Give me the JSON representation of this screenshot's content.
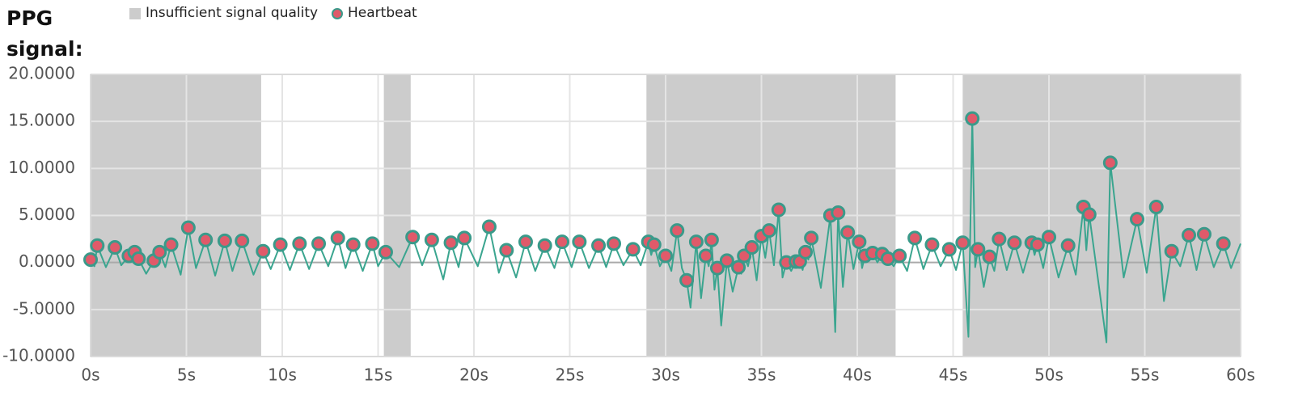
{
  "chart_data": {
    "type": "line",
    "title": "PPG signal:",
    "xlim": [
      0,
      60
    ],
    "ylim": [
      -10,
      20
    ],
    "xticks": [
      {
        "value": 0,
        "label": "0s"
      },
      {
        "value": 5,
        "label": "5s"
      },
      {
        "value": 10,
        "label": "10s"
      },
      {
        "value": 15,
        "label": "15s"
      },
      {
        "value": 20,
        "label": "20s"
      },
      {
        "value": 25,
        "label": "25s"
      },
      {
        "value": 30,
        "label": "30s"
      },
      {
        "value": 35,
        "label": "35s"
      },
      {
        "value": 40,
        "label": "40s"
      },
      {
        "value": 45,
        "label": "45s"
      },
      {
        "value": 50,
        "label": "50s"
      },
      {
        "value": 55,
        "label": "55s"
      },
      {
        "value": 60,
        "label": "60s"
      }
    ],
    "yticks": [
      {
        "value": -10,
        "label": "-10.0000"
      },
      {
        "value": -5,
        "label": "-5.0000"
      },
      {
        "value": 0,
        "label": "0.0000"
      },
      {
        "value": 5,
        "label": "5.0000"
      },
      {
        "value": 10,
        "label": "10.0000"
      },
      {
        "value": 15,
        "label": "15.0000"
      },
      {
        "value": 20,
        "label": "20.0000"
      }
    ],
    "grid": true,
    "regions": {
      "name": "Insufficient signal quality",
      "color": "#cccccc",
      "spans": [
        [
          0,
          8.9
        ],
        [
          15.3,
          16.7
        ],
        [
          29.0,
          42.0
        ],
        [
          45.5,
          60
        ]
      ]
    },
    "signal": {
      "color": "#3aa58f",
      "x": [
        0,
        0.2,
        0.35,
        0.8,
        1.27,
        1.6,
        2.0,
        2.15,
        2.3,
        2.4,
        2.5,
        2.9,
        3.3,
        3.45,
        3.6,
        3.9,
        4.2,
        4.7,
        5.1,
        5.5,
        6.0,
        6.5,
        7.0,
        7.4,
        7.9,
        8.5,
        9.0,
        9.4,
        9.9,
        10.4,
        10.9,
        11.4,
        11.9,
        12.4,
        12.9,
        13.3,
        13.7,
        14.2,
        14.7,
        15.0,
        15.4,
        16.1,
        16.8,
        17.3,
        17.8,
        18.4,
        18.8,
        19.2,
        19.5,
        20.2,
        20.8,
        21.3,
        21.7,
        22.2,
        22.7,
        23.2,
        23.7,
        24.2,
        24.6,
        25.1,
        25.5,
        26.0,
        26.5,
        26.9,
        27.3,
        27.8,
        28.3,
        28.7,
        29.1,
        29.25,
        29.4,
        29.7,
        30.0,
        30.3,
        30.6,
        30.85,
        31.1,
        31.3,
        31.6,
        31.85,
        32.1,
        32.25,
        32.4,
        32.55,
        32.7,
        32.9,
        33.2,
        33.5,
        33.8,
        33.95,
        34.1,
        34.3,
        34.5,
        34.75,
        35.0,
        35.2,
        35.4,
        35.65,
        35.9,
        36.1,
        36.3,
        36.55,
        36.8,
        36.9,
        37.0,
        37.15,
        37.3,
        37.45,
        37.6,
        38.1,
        38.6,
        38.85,
        39.0,
        39.25,
        39.5,
        39.8,
        40.1,
        40.25,
        40.4,
        40.6,
        40.8,
        41.05,
        41.3,
        41.45,
        41.6,
        41.9,
        42.2,
        42.6,
        43.0,
        43.45,
        43.9,
        44.35,
        44.8,
        45.15,
        45.5,
        45.8,
        46.0,
        46.15,
        46.3,
        46.6,
        46.9,
        47.15,
        47.4,
        47.8,
        48.2,
        48.65,
        49.1,
        49.25,
        49.4,
        49.7,
        50.0,
        50.5,
        51.0,
        51.4,
        51.8,
        51.95,
        52.1,
        52.6,
        53.0,
        53.2,
        53.9,
        54.6,
        55.1,
        55.6,
        56.0,
        56.4,
        56.85,
        57.3,
        57.7,
        58.1,
        58.6,
        59.1,
        59.5,
        60
      ],
      "values": [
        0.3,
        -0.4,
        1.8,
        -0.5,
        1.6,
        -0.3,
        0.7,
        0.1,
        1.1,
        0,
        0.4,
        -1.2,
        0.2,
        -0.2,
        1.1,
        -0.5,
        1.9,
        -1.3,
        3.7,
        -0.6,
        2.4,
        -1.4,
        2.3,
        -0.9,
        2.3,
        -1.3,
        1.2,
        -0.7,
        1.9,
        -0.8,
        2.0,
        -0.7,
        2.0,
        -0.4,
        2.6,
        -0.6,
        1.9,
        -0.9,
        2.0,
        -0.4,
        1.1,
        -0.5,
        2.7,
        -0.3,
        2.4,
        -1.8,
        2.1,
        -0.5,
        2.6,
        -0.4,
        3.8,
        -1.1,
        1.3,
        -1.6,
        2.2,
        -0.9,
        1.8,
        -0.6,
        2.2,
        -0.5,
        2.2,
        -0.6,
        1.8,
        -0.5,
        2.0,
        -0.3,
        1.4,
        -0.3,
        2.2,
        0.8,
        1.9,
        -0.4,
        0.7,
        -0.9,
        3.4,
        -0.6,
        -1.9,
        -4.8,
        2.2,
        -3.8,
        0.7,
        -0.4,
        2.4,
        -2.9,
        -0.6,
        -6.7,
        0.2,
        -3.1,
        -0.5,
        -1.2,
        0.7,
        -0.4,
        1.6,
        -1.9,
        2.8,
        0.5,
        3.4,
        -0.3,
        5.6,
        -1.6,
        0.0,
        -0.9,
        0.1,
        -0.5,
        0.1,
        -0.8,
        1.1,
        0.3,
        2.6,
        -2.7,
        5.0,
        -7.4,
        5.3,
        -2.6,
        3.2,
        -0.7,
        2.2,
        -0.6,
        0.7,
        0.2,
        1.0,
        0,
        0.9,
        -0.2,
        0.4,
        -0.4,
        0.7,
        -0.9,
        2.6,
        -0.7,
        1.9,
        -0.4,
        1.4,
        -0.8,
        2.1,
        -7.9,
        15.3,
        -0.5,
        1.4,
        -2.6,
        0.6,
        -0.9,
        2.5,
        -0.8,
        2.1,
        -1.1,
        2.1,
        0.8,
        1.9,
        -0.6,
        2.7,
        -1.6,
        1.8,
        -1.3,
        5.9,
        1.3,
        5.1,
        -2.4,
        -8.5,
        10.6,
        -1.6,
        4.6,
        -1.1,
        5.9,
        -4.1,
        1.2,
        -0.4,
        2.9,
        -0.8,
        3.0,
        -0.5,
        2.0,
        -0.6,
        2.0
      ]
    },
    "heartbeats": {
      "name": "Heartbeat",
      "color": "#e05a6a",
      "edge": "#3a9a8a",
      "x": [
        0,
        0.35,
        1.27,
        2.0,
        2.3,
        2.5,
        3.3,
        3.6,
        4.2,
        5.1,
        6.0,
        7.0,
        7.9,
        9.0,
        9.9,
        10.9,
        11.9,
        12.9,
        13.7,
        14.7,
        15.4,
        16.8,
        17.8,
        18.8,
        19.5,
        20.8,
        21.7,
        22.7,
        23.7,
        24.6,
        25.5,
        26.5,
        27.3,
        28.3,
        29.1,
        29.4,
        30.0,
        30.6,
        31.1,
        31.6,
        32.1,
        32.4,
        32.7,
        33.2,
        33.8,
        34.1,
        34.5,
        35.0,
        35.4,
        35.9,
        36.3,
        36.8,
        37.0,
        37.3,
        37.6,
        38.6,
        39.0,
        39.5,
        40.1,
        40.4,
        40.8,
        41.3,
        41.6,
        42.2,
        43.0,
        43.9,
        44.8,
        45.5,
        46.0,
        46.3,
        46.9,
        47.4,
        48.2,
        49.1,
        49.4,
        50.0,
        51.0,
        51.8,
        52.1,
        53.2,
        54.6,
        55.6,
        56.4,
        57.3,
        58.1,
        59.1
      ],
      "values": [
        0.3,
        1.8,
        1.6,
        0.7,
        1.1,
        0.4,
        0.2,
        1.1,
        1.9,
        3.7,
        2.4,
        2.3,
        2.3,
        1.2,
        1.9,
        2.0,
        2.0,
        2.6,
        1.9,
        2.0,
        1.1,
        2.7,
        2.4,
        2.1,
        2.6,
        3.8,
        1.3,
        2.2,
        1.8,
        2.2,
        2.2,
        1.8,
        2.0,
        1.4,
        2.2,
        1.9,
        0.7,
        3.4,
        -1.9,
        2.2,
        0.7,
        2.4,
        -0.6,
        0.2,
        -0.5,
        0.7,
        1.6,
        2.8,
        3.4,
        5.6,
        0.0,
        0.1,
        0.1,
        1.1,
        2.6,
        5.0,
        5.3,
        3.2,
        2.2,
        0.7,
        1.0,
        0.9,
        0.4,
        0.7,
        2.6,
        1.9,
        1.4,
        2.1,
        15.3,
        1.4,
        0.6,
        2.5,
        2.1,
        2.1,
        1.9,
        2.7,
        1.8,
        5.9,
        5.1,
        10.6,
        4.6,
        5.9,
        1.2,
        2.9,
        3.0,
        2.0
      ]
    }
  }
}
